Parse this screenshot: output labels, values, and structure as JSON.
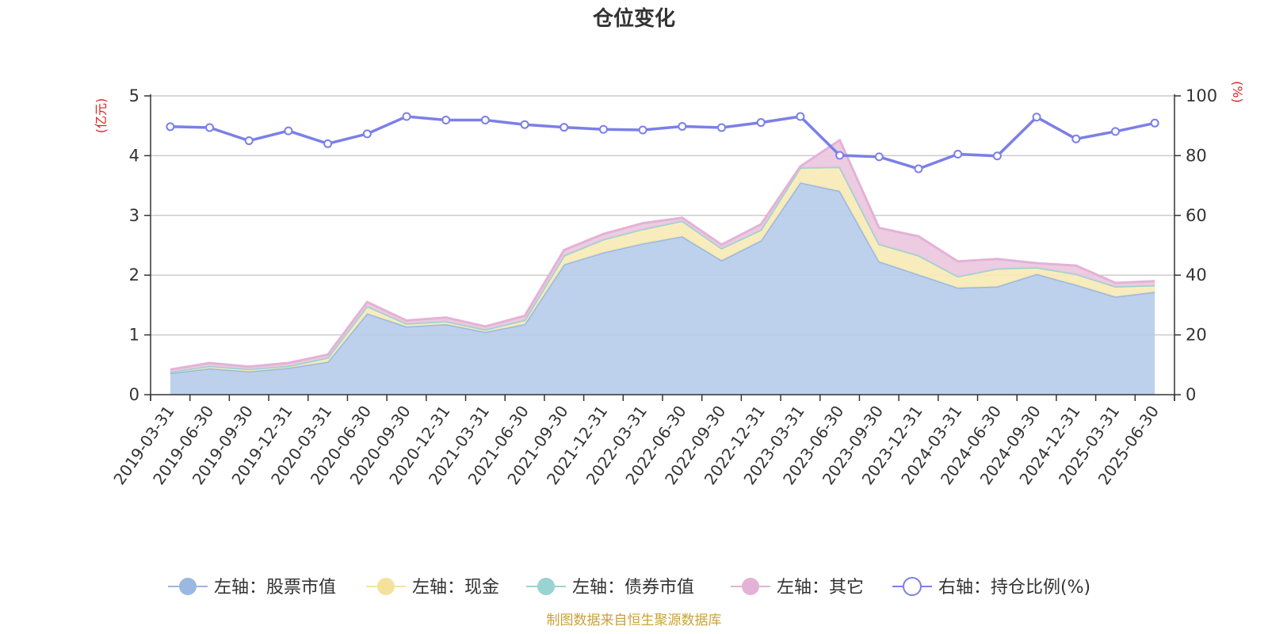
{
  "chart_data": {
    "type": "area",
    "title": "仓位变化",
    "left_axis": {
      "unit": "(亿元)",
      "ylim": [
        0,
        5
      ],
      "ticks": [
        0,
        1,
        2,
        3,
        4,
        5
      ]
    },
    "right_axis": {
      "unit": "(%)",
      "ylim": [
        0,
        100
      ],
      "ticks": [
        0,
        20,
        40,
        60,
        80,
        100
      ]
    },
    "categories": [
      "2019-03-31",
      "2019-06-30",
      "2019-09-30",
      "2019-12-31",
      "2020-03-31",
      "2020-06-30",
      "2020-09-30",
      "2020-12-31",
      "2021-03-31",
      "2021-06-30",
      "2021-09-30",
      "2021-12-31",
      "2022-03-31",
      "2022-06-30",
      "2022-09-30",
      "2022-12-31",
      "2023-03-31",
      "2023-06-30",
      "2023-09-30",
      "2023-12-31",
      "2024-03-31",
      "2024-06-30",
      "2024-09-30",
      "2024-12-31",
      "2025-03-31",
      "2025-06-30"
    ],
    "series": [
      {
        "name": "左轴：股票市值",
        "axis": "left",
        "type": "area",
        "color": "#9bb8e0",
        "fill": "#b7cdea",
        "values": [
          0.36,
          0.44,
          0.39,
          0.45,
          0.55,
          1.36,
          1.14,
          1.18,
          1.05,
          1.18,
          2.18,
          2.38,
          2.53,
          2.65,
          2.25,
          2.58,
          3.55,
          3.41,
          2.23,
          2.01,
          1.79,
          1.81,
          2.02,
          1.84,
          1.64,
          1.72
        ]
      },
      {
        "name": "左轴：现金",
        "axis": "left",
        "type": "area",
        "color": "#f4e29c",
        "fill": "#f8eab6",
        "values": [
          0.02,
          0.04,
          0.04,
          0.03,
          0.07,
          0.12,
          0.05,
          0.05,
          0.04,
          0.07,
          0.15,
          0.22,
          0.24,
          0.26,
          0.2,
          0.18,
          0.25,
          0.4,
          0.29,
          0.32,
          0.19,
          0.3,
          0.11,
          0.18,
          0.17,
          0.11
        ]
      },
      {
        "name": "左轴：债券市值",
        "axis": "left",
        "type": "area",
        "color": "#99d3d3",
        "fill": "#b8e2e2",
        "values": [
          0,
          0,
          0,
          0,
          0,
          0,
          0,
          0,
          0,
          0,
          0,
          0,
          0,
          0,
          0,
          0,
          0,
          0,
          0,
          0,
          0,
          0,
          0,
          0,
          0,
          0
        ]
      },
      {
        "name": "左轴：其它",
        "axis": "left",
        "type": "area",
        "color": "#e4b2d6",
        "fill": "#ecc8e0",
        "values": [
          0.04,
          0.05,
          0.04,
          0.05,
          0.05,
          0.07,
          0.05,
          0.06,
          0.05,
          0.07,
          0.09,
          0.09,
          0.1,
          0.05,
          0.06,
          0.09,
          0.02,
          0.45,
          0.27,
          0.32,
          0.25,
          0.16,
          0.07,
          0.14,
          0.06,
          0.07
        ]
      },
      {
        "name": "右轴：持仓比例(%)",
        "axis": "right",
        "type": "line",
        "color": "#7b7fe8",
        "values": [
          89.7,
          89.4,
          85.0,
          88.3,
          84.0,
          87.3,
          93.1,
          91.9,
          91.9,
          90.4,
          89.5,
          88.8,
          88.6,
          89.8,
          89.4,
          91.1,
          93.1,
          80.1,
          79.6,
          75.6,
          80.5,
          79.9,
          92.9,
          85.6,
          88.1,
          90.9
        ]
      }
    ],
    "legend_position": "bottom",
    "grid": true
  },
  "source": {
    "text": "制图数据来自恒生聚源数据库",
    "color": "#c9a23a"
  },
  "colors": {
    "left_unit": "#e02020",
    "right_unit": "#e02020",
    "grid": "#cccccc",
    "axis": "#333333"
  }
}
